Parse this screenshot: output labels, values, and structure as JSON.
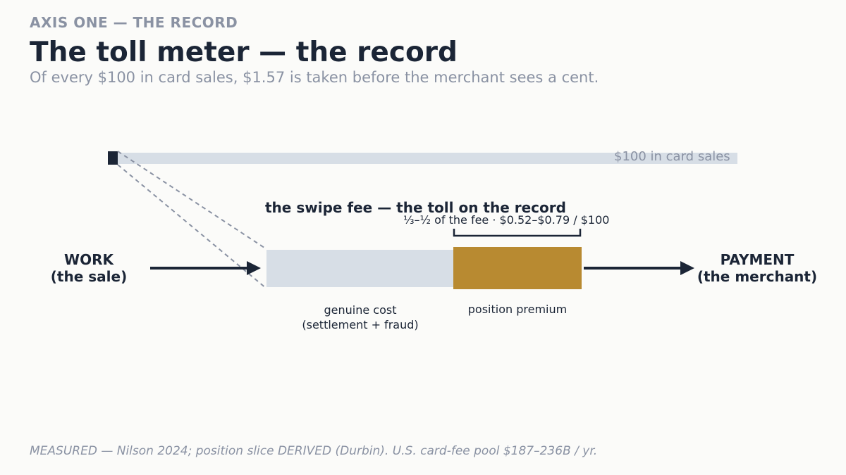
{
  "header": {
    "eyebrow": "AXIS ONE — THE RECORD",
    "title": "The toll meter — the record",
    "subtitle": "Of every $100 in card sales, $1.57 is taken before the merchant sees a cent."
  },
  "sales_bar": {
    "label": "$100 in card sales"
  },
  "flow": {
    "source": {
      "line1": "WORK",
      "line2": "(the sale)"
    },
    "destination": {
      "line1": "PAYMENT",
      "line2": "(the merchant)"
    }
  },
  "fee": {
    "title": "the swipe fee — the toll on the record",
    "premium_note": "⅓–½ of the fee  ·  $0.52–$0.79 / $100",
    "genuine_cost": {
      "line1": "genuine cost",
      "line2": "(settlement + fraud)"
    },
    "position_premium": {
      "label": "position premium"
    }
  },
  "colors": {
    "text": "#1b2536",
    "muted": "#8a92a3",
    "bar_fill": "#d7dee6",
    "premium_fill": "#b88a31",
    "background": "#fbfbf9"
  },
  "footer": {
    "note": "MEASURED — Nilson 2024; position slice DERIVED (Durbin). U.S. card-fee pool $187–236B / yr."
  }
}
